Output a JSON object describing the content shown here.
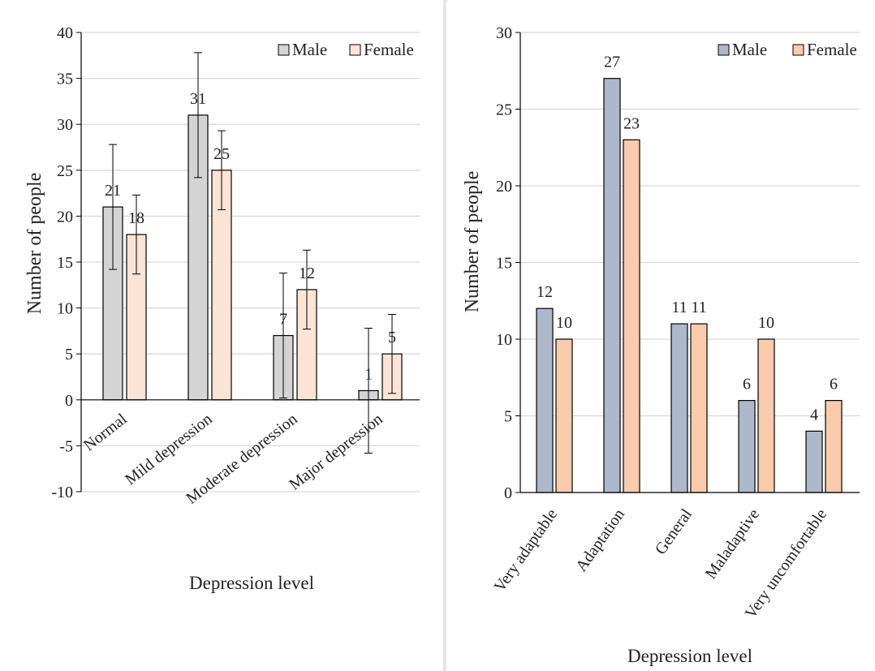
{
  "colors": {
    "left_male": "#d4d4d4",
    "left_female": "#fbe4d6",
    "right_male": "#adb9ca",
    "right_female": "#f8cbad",
    "gridline": "#d9d9d9",
    "axis": "#000000"
  },
  "chart_data": [
    {
      "type": "bar",
      "categories": [
        "Normal",
        "Mild depression",
        "Moderate depression",
        "Major depression"
      ],
      "series": [
        {
          "name": "Male",
          "values": [
            21,
            31,
            7,
            1
          ],
          "error": [
            6.8,
            6.8,
            6.8,
            6.8
          ]
        },
        {
          "name": "Female",
          "values": [
            18,
            25,
            12,
            5
          ],
          "error": [
            4.3,
            4.3,
            4.3,
            4.3
          ]
        }
      ],
      "data_labels": [
        [
          "21",
          "31",
          "7",
          "1"
        ],
        [
          "18",
          "25",
          "12",
          "5"
        ]
      ],
      "xlabel": "Depression level",
      "ylabel": "Number of people",
      "ylim": [
        -10,
        40
      ],
      "yticks": [
        -10,
        -5,
        0,
        5,
        10,
        15,
        20,
        25,
        30,
        35,
        40
      ],
      "ytick_labels": [
        "-10",
        "-5",
        "0",
        "5",
        "10",
        "15",
        "20",
        "25",
        "30",
        "35",
        "40"
      ],
      "grid": true,
      "legend": "top-right"
    },
    {
      "type": "bar",
      "categories": [
        "Very adaptable",
        "Adaptation",
        "General",
        "Maladaptive",
        "Very uncomfortable"
      ],
      "series": [
        {
          "name": "Male",
          "values": [
            12,
            27,
            11,
            6,
            4
          ]
        },
        {
          "name": "Female",
          "values": [
            10,
            23,
            11,
            10,
            6
          ]
        }
      ],
      "data_labels": [
        [
          "12",
          "27",
          "11",
          "6",
          "4"
        ],
        [
          "10",
          "23",
          "11",
          "10",
          "6"
        ]
      ],
      "xlabel": "Depression level",
      "ylabel": "Number of people",
      "ylim": [
        0,
        30
      ],
      "yticks": [
        0,
        5,
        10,
        15,
        20,
        25,
        30
      ],
      "ytick_labels": [
        "0",
        "5",
        "10",
        "15",
        "20",
        "25",
        "30"
      ],
      "grid": true,
      "legend": "top-right"
    }
  ]
}
